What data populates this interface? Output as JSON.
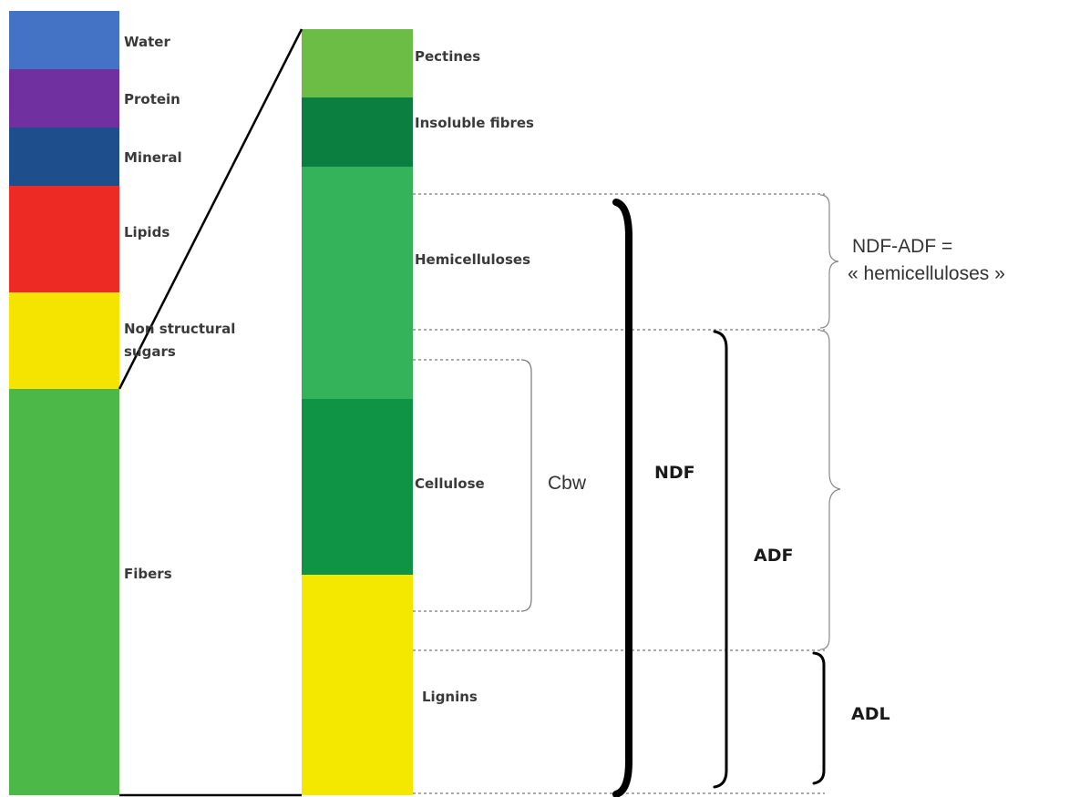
{
  "composition": {
    "segments": [
      {
        "label": "Water",
        "color": "#4472c4"
      },
      {
        "label": "Protein",
        "color": "#7030a0"
      },
      {
        "label": "Mineral",
        "color": "#1f4e8c"
      },
      {
        "label": "Lipids",
        "color": "#ee2a24"
      },
      {
        "label_lines": [
          "Non structural",
          "sugars"
        ],
        "color": "#f5e400"
      },
      {
        "label": "Fibers",
        "color": "#4cb848"
      }
    ]
  },
  "fibers_detail": {
    "segments": [
      {
        "label": "Pectines",
        "color": "#6cbd45"
      },
      {
        "label": "Insoluble fibres",
        "color": "#0a7f3f"
      },
      {
        "label": "Hemicelluloses",
        "color": "#34b35a"
      },
      {
        "label": "Cellulose",
        "color": "#0e9444"
      },
      {
        "label": "Lignins",
        "color": "#f5e800"
      }
    ]
  },
  "annotations": {
    "cbw": "Cbw",
    "ndf": "NDF",
    "adf": "ADF",
    "adl": "ADL",
    "ndf_minus_adf_lines": [
      "NDF-ADF =",
      "« hemicelluloses »"
    ]
  }
}
